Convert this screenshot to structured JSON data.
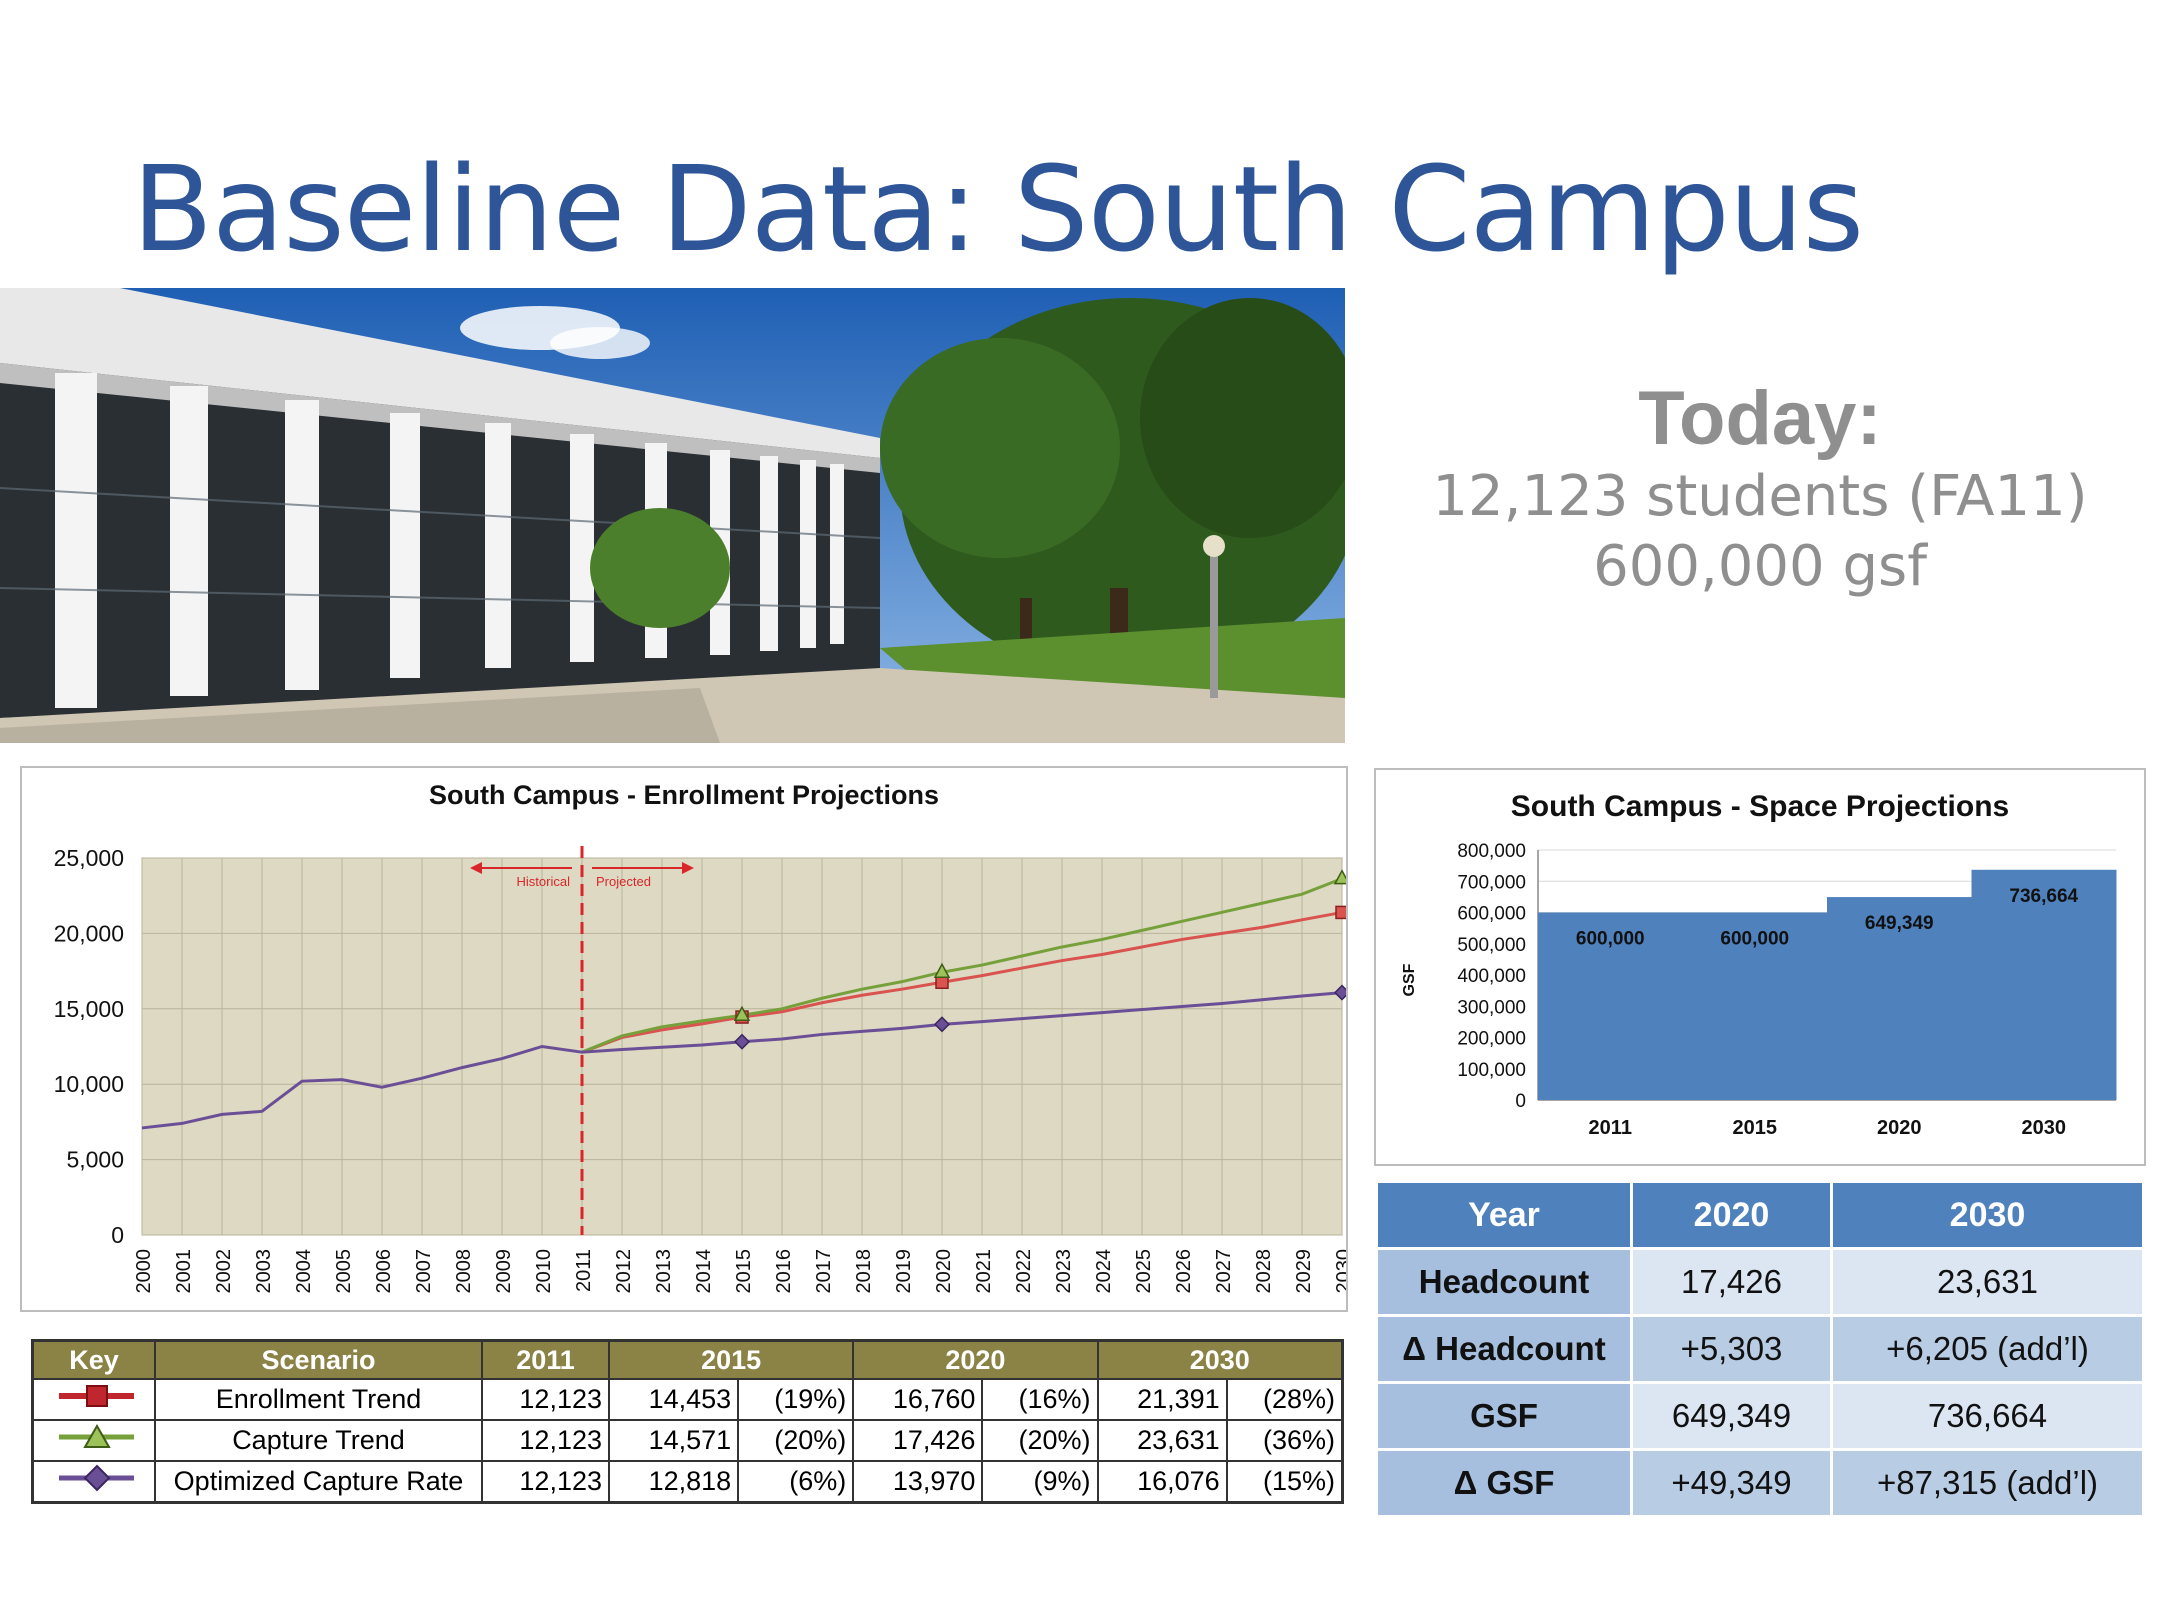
{
  "slide": {
    "title": "Baseline Data: South Campus"
  },
  "today": {
    "heading": "Today:",
    "line1": "12,123 students (FA11)",
    "line2": "600,000 gsf"
  },
  "colors": {
    "title": "#2e5597",
    "enrollment_trend": "#d9534f",
    "capture_trend": "#76a03a",
    "optimized": "#6b4f96",
    "plot_bg": "#ddd9c3",
    "bar": "#4f81bd",
    "divider": "#d9262b"
  },
  "chart_data": [
    {
      "type": "line",
      "title": "South Campus - Enrollment Projections",
      "ylim": [
        0,
        25000
      ],
      "yticks": [
        "0",
        "5,000",
        "10,000",
        "15,000",
        "20,000",
        "25,000"
      ],
      "ytick_values": [
        0,
        5000,
        10000,
        15000,
        20000,
        25000
      ],
      "x": [
        2000,
        2001,
        2002,
        2003,
        2004,
        2005,
        2006,
        2007,
        2008,
        2009,
        2010,
        2011,
        2012,
        2013,
        2014,
        2015,
        2016,
        2017,
        2018,
        2019,
        2020,
        2021,
        2022,
        2023,
        2024,
        2025,
        2026,
        2027,
        2028,
        2029,
        2030
      ],
      "grid": true,
      "divider_year": 2011,
      "annotations": {
        "left": "Historical",
        "right": "Projected"
      },
      "historical": {
        "x": [
          2000,
          2001,
          2002,
          2003,
          2004,
          2005,
          2006,
          2007,
          2008,
          2009,
          2010,
          2011
        ],
        "values": [
          7100,
          7400,
          8000,
          8200,
          10200,
          10300,
          9800,
          10400,
          11100,
          11700,
          12500,
          12123
        ]
      },
      "series": [
        {
          "name": "Enrollment Trend",
          "x": [
            2011,
            2012,
            2013,
            2014,
            2015,
            2016,
            2017,
            2018,
            2019,
            2020,
            2021,
            2022,
            2023,
            2024,
            2025,
            2026,
            2027,
            2028,
            2029,
            2030
          ],
          "values": [
            12123,
            13100,
            13600,
            14000,
            14453,
            14800,
            15400,
            15900,
            16300,
            16760,
            17200,
            17700,
            18200,
            18600,
            19100,
            19600,
            20000,
            20400,
            20900,
            21391
          ],
          "markers": [
            2015,
            2020,
            2030
          ]
        },
        {
          "name": "Capture Trend",
          "x": [
            2011,
            2012,
            2013,
            2014,
            2015,
            2016,
            2017,
            2018,
            2019,
            2020,
            2021,
            2022,
            2023,
            2024,
            2025,
            2026,
            2027,
            2028,
            2029,
            2030
          ],
          "values": [
            12123,
            13200,
            13800,
            14200,
            14571,
            15000,
            15700,
            16300,
            16800,
            17426,
            17900,
            18500,
            19100,
            19600,
            20200,
            20800,
            21400,
            22000,
            22600,
            23631
          ],
          "markers": [
            2015,
            2020,
            2030
          ]
        },
        {
          "name": "Optimized Capture Rate",
          "x": [
            2011,
            2012,
            2013,
            2014,
            2015,
            2016,
            2017,
            2018,
            2019,
            2020,
            2021,
            2022,
            2023,
            2024,
            2025,
            2026,
            2027,
            2028,
            2029,
            2030
          ],
          "values": [
            12123,
            12300,
            12450,
            12600,
            12818,
            13000,
            13300,
            13500,
            13700,
            13970,
            14150,
            14350,
            14550,
            14750,
            14950,
            15150,
            15350,
            15600,
            15850,
            16076
          ],
          "markers": [
            2015,
            2020,
            2030
          ]
        }
      ]
    },
    {
      "type": "bar",
      "title": "South Campus - Space Projections",
      "ylabel": "GSF",
      "ylim": [
        0,
        800000
      ],
      "yticks": [
        "0",
        "100,000",
        "200,000",
        "300,000",
        "400,000",
        "500,000",
        "600,000",
        "700,000",
        "800,000"
      ],
      "ytick_values": [
        0,
        100000,
        200000,
        300000,
        400000,
        500000,
        600000,
        700000,
        800000
      ],
      "categories": [
        "2011",
        "2015",
        "2020",
        "2030"
      ],
      "values": [
        600000,
        600000,
        649349,
        736664
      ],
      "data_labels": [
        "600,000",
        "600,000",
        "649,349",
        "736,664"
      ]
    }
  ],
  "key_table": {
    "headers": [
      "Key",
      "Scenario",
      "2011",
      "2015",
      "2020",
      "2030"
    ],
    "rows": [
      {
        "scenario": "Enrollment Trend",
        "y2011": "12,123",
        "y2015": "14,453",
        "p2015": "(19%)",
        "y2020": "16,760",
        "p2020": "(16%)",
        "y2030": "21,391",
        "p2030": "(28%)",
        "marker": "square"
      },
      {
        "scenario": "Capture Trend",
        "y2011": "12,123",
        "y2015": "14,571",
        "p2015": "(20%)",
        "y2020": "17,426",
        "p2020": "(20%)",
        "y2030": "23,631",
        "p2030": "(36%)",
        "marker": "triangle"
      },
      {
        "scenario": "Optimized Capture Rate",
        "y2011": "12,123",
        "y2015": "12,818",
        "p2015": "(6%)",
        "y2020": "13,970",
        "p2020": "(9%)",
        "y2030": "16,076",
        "p2030": "(15%)",
        "marker": "diamond"
      }
    ]
  },
  "stats_table": {
    "headers": [
      "Year",
      "2020",
      "2030"
    ],
    "rows": [
      {
        "label": "Headcount",
        "v2020": "17,426",
        "v2030": "23,631"
      },
      {
        "label": "Δ Headcount",
        "v2020": "+5,303",
        "v2030": "+6,205 (add’l)"
      },
      {
        "label": "GSF",
        "v2020": "649,349",
        "v2030": "736,664"
      },
      {
        "label": "Δ GSF",
        "v2020": "+49,349",
        "v2030": "+87,315 (add’l)"
      }
    ]
  }
}
